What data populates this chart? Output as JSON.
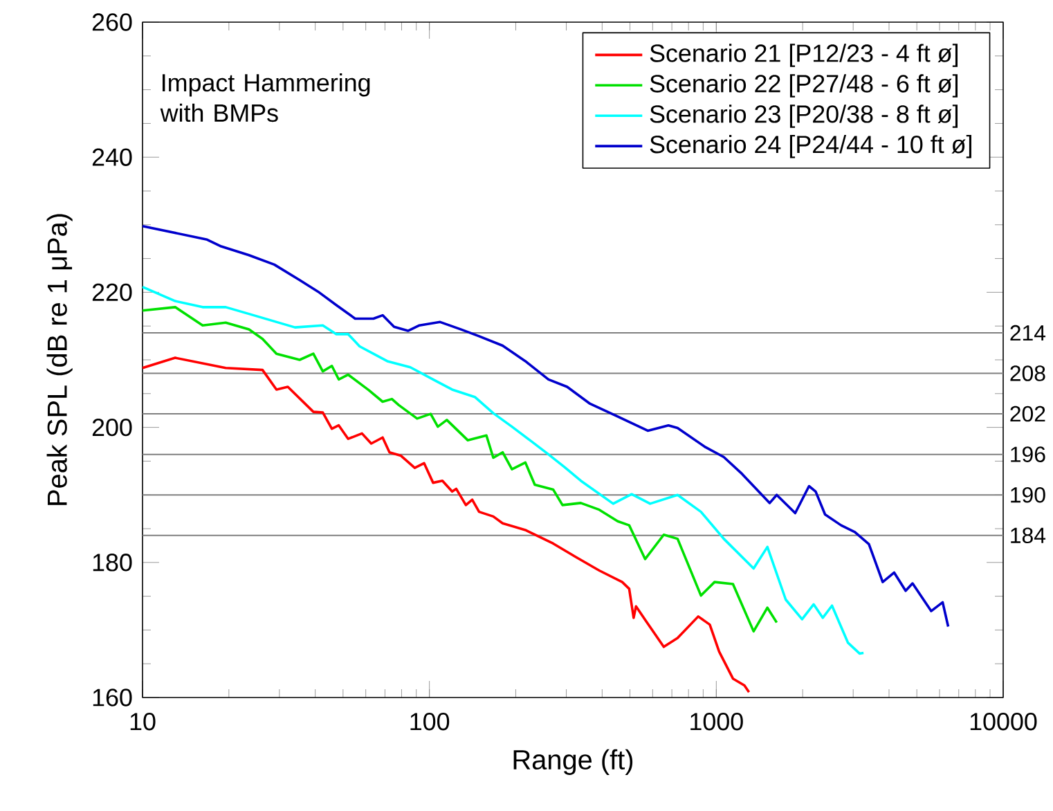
{
  "chart_data": {
    "type": "line",
    "xlabel": "Range (ft)",
    "ylabel": "Peak SPL (dB re 1 μPa)",
    "log": "x",
    "xlim": [
      10,
      10000
    ],
    "xticks": [
      10,
      100,
      1000,
      10000
    ],
    "ylim": [
      160,
      260
    ],
    "yticks": [
      160,
      180,
      200,
      220,
      240,
      260
    ],
    "legend": "top right",
    "annotations": [
      "Impact Hammering with BMPs"
    ],
    "ref_lines": [
      {
        "axis": "y",
        "value": 214,
        "label": "214",
        "color": "#808080"
      },
      {
        "axis": "y",
        "value": 208,
        "label": "208",
        "color": "#808080"
      },
      {
        "axis": "y",
        "value": 202,
        "label": "202",
        "color": "#808080"
      },
      {
        "axis": "y",
        "value": 196,
        "label": "196",
        "color": "#808080"
      },
      {
        "axis": "y",
        "value": 190,
        "label": "190",
        "color": "#808080"
      },
      {
        "axis": "y",
        "value": 184,
        "label": "184",
        "color": "#808080"
      }
    ],
    "series": [
      {
        "name": "Scenario 21  [P12/23 - 4 ft ø]",
        "color": "#ff0000",
        "x": [
          10,
          13,
          19.5,
          26.2,
          29.3,
          32.1,
          39.4,
          42.5,
          45.7,
          48.3,
          52.1,
          58.2,
          62.7,
          68.7,
          72.6,
          79.6,
          88.9,
          95.8,
          103,
          111,
          120,
          124,
          134,
          141,
          149,
          167,
          180,
          216,
          270,
          324,
          391,
          470,
          497,
          515,
          525,
          565,
          656,
          733,
          865,
          949,
          1023,
          1143,
          1253,
          1300
        ],
        "values": [
          208.8,
          210.3,
          208.8,
          208.5,
          205.6,
          206.0,
          202.3,
          202.2,
          199.8,
          200.3,
          198.3,
          199.1,
          197.6,
          198.5,
          196.3,
          195.8,
          194,
          194.7,
          191.8,
          192.1,
          190.5,
          190.9,
          188.5,
          189.3,
          187.5,
          186.8,
          185.8,
          184.8,
          182.8,
          180.8,
          178.8,
          177.1,
          176.1,
          171.8,
          173.5,
          171.5,
          167.5,
          168.8,
          172,
          170.8,
          166.8,
          162.8,
          161.8,
          160.8
        ]
      },
      {
        "name": "Scenario 22  [P27/48 - 6 ft ø]",
        "color": "#00e000",
        "x": [
          10,
          13,
          16.2,
          19.5,
          23.5,
          26.2,
          29.3,
          35.3,
          39.4,
          42.5,
          45.7,
          48.3,
          52.1,
          61.5,
          68.7,
          74,
          78.2,
          90.6,
          101,
          107,
          115,
          136,
          158,
          167,
          180,
          194,
          216,
          233,
          270,
          291,
          337,
          391,
          453,
          497,
          565,
          656,
          733,
          884,
          986,
          1143,
          1349,
          1507,
          1624
        ],
        "values": [
          217.3,
          217.8,
          215.1,
          215.5,
          214.5,
          213.1,
          210.9,
          210,
          210.9,
          208.3,
          209.1,
          207.1,
          207.8,
          205.5,
          203.8,
          204.2,
          203.3,
          201.3,
          202,
          200.1,
          201.1,
          198.1,
          198.8,
          195.5,
          196.3,
          193.8,
          194.8,
          191.5,
          190.8,
          188.5,
          188.8,
          187.8,
          186.1,
          185.5,
          180.5,
          184.1,
          183.5,
          175.1,
          177.1,
          176.8,
          169.8,
          173.3,
          171.1
        ]
      },
      {
        "name": "Scenario 23  [P20/38 - 8 ft ø]",
        "color": "#00ffff",
        "x": [
          10,
          13,
          16.2,
          19.5,
          23.5,
          34,
          42.5,
          47.4,
          52.1,
          57.1,
          71.3,
          85.8,
          103,
          120,
          144,
          167,
          194,
          224,
          260,
          296,
          337,
          437,
          507,
          588,
          733,
          884,
          1062,
          1349,
          1507,
          1746,
          1991,
          2184,
          2350,
          2531,
          2878,
          3162,
          3260
        ],
        "values": [
          220.8,
          218.7,
          217.8,
          217.8,
          216.8,
          214.8,
          215.1,
          213.8,
          213.8,
          212,
          209.8,
          208.9,
          207.1,
          205.6,
          204.5,
          202.1,
          200.1,
          198.1,
          196,
          194.1,
          192.1,
          188.7,
          190.1,
          188.7,
          190,
          187.5,
          183.5,
          179.1,
          182.3,
          174.5,
          171.6,
          173.8,
          171.8,
          173.6,
          168.1,
          166.5,
          166.6
        ]
      },
      {
        "name": "Scenario 24  [P24/44 - 10 ft ø]",
        "color": "#0000cc",
        "x": [
          10,
          16.8,
          18.8,
          23.5,
          28.8,
          35.3,
          40.9,
          47.4,
          55.1,
          63.8,
          68.7,
          75.3,
          84.2,
          92.3,
          109,
          129,
          149,
          180,
          216,
          260,
          302,
          363,
          453,
          577,
          681,
          733,
          914,
          1062,
          1230,
          1535,
          1624,
          1884,
          2105,
          2220,
          2394,
          2723,
          3040,
          3404,
          3802,
          4169,
          4571,
          4831,
          5610,
          6152,
          6432
        ],
        "values": [
          229.8,
          227.8,
          226.8,
          225.5,
          224.1,
          221.8,
          220.1,
          218.1,
          216.1,
          216.1,
          216.6,
          214.9,
          214.3,
          215.1,
          215.6,
          214.5,
          213.5,
          212.1,
          209.8,
          207.1,
          206,
          203.5,
          201.6,
          199.5,
          200.3,
          199.9,
          197.1,
          195.6,
          193.1,
          188.8,
          190,
          187.3,
          191.3,
          190.5,
          187.1,
          185.5,
          184.5,
          182.7,
          177.1,
          178.5,
          175.8,
          176.9,
          172.8,
          174.1,
          170.5
        ]
      }
    ]
  }
}
